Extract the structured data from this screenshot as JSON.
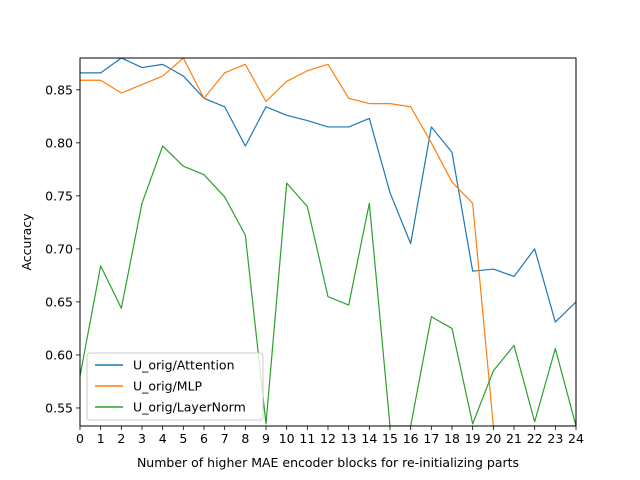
{
  "chart_data": {
    "type": "line",
    "title": "",
    "xlabel": "Number of higher MAE encoder blocks for re-initializing parts",
    "ylabel": "Accuracy",
    "xlim": [
      0,
      24
    ],
    "ylim": [
      0.533,
      0.88
    ],
    "x": [
      0,
      1,
      2,
      3,
      4,
      5,
      6,
      7,
      8,
      9,
      10,
      11,
      12,
      13,
      14,
      15,
      16,
      17,
      18,
      19,
      20,
      21,
      22,
      23,
      24
    ],
    "xticks": [
      "0",
      "1",
      "2",
      "3",
      "4",
      "5",
      "6",
      "7",
      "8",
      "9",
      "10",
      "11",
      "12",
      "13",
      "14",
      "15",
      "16",
      "17",
      "18",
      "19",
      "20",
      "21",
      "22",
      "23",
      "24"
    ],
    "yticks": [
      0.55,
      0.6,
      0.65,
      0.7,
      0.75,
      0.8,
      0.85
    ],
    "ytick_labels": [
      "0.55",
      "0.60",
      "0.65",
      "0.70",
      "0.75",
      "0.80",
      "0.85"
    ],
    "grid": false,
    "legend_position": "lower-left",
    "series": [
      {
        "name": "U_orig/Attention",
        "color": "#1f77b4",
        "values": [
          0.866,
          0.866,
          0.88,
          0.871,
          0.874,
          0.863,
          0.842,
          0.834,
          0.797,
          0.834,
          0.826,
          0.821,
          0.815,
          0.815,
          0.823,
          0.753,
          0.705,
          0.815,
          0.791,
          0.679,
          0.681,
          0.674,
          0.7,
          0.631,
          0.65
        ]
      },
      {
        "name": "U_orig/MLP",
        "color": "#ff7f0e",
        "values": [
          0.859,
          0.859,
          0.847,
          0.855,
          0.863,
          0.88,
          0.842,
          0.866,
          0.874,
          0.839,
          0.858,
          0.868,
          0.874,
          0.842,
          0.837,
          0.837,
          0.834,
          0.8,
          0.763,
          0.743,
          0.533,
          0.533,
          0.533,
          0.533,
          0.533
        ]
      },
      {
        "name": "U_orig/LayerNorm",
        "color": "#2ca02c",
        "values": [
          0.58,
          0.684,
          0.644,
          0.743,
          0.797,
          0.778,
          0.77,
          0.749,
          0.713,
          0.535,
          0.762,
          0.74,
          0.655,
          0.647,
          0.743,
          0.533,
          0.533,
          0.636,
          0.625,
          0.535,
          0.585,
          0.609,
          0.537,
          0.606,
          0.533
        ]
      }
    ]
  }
}
